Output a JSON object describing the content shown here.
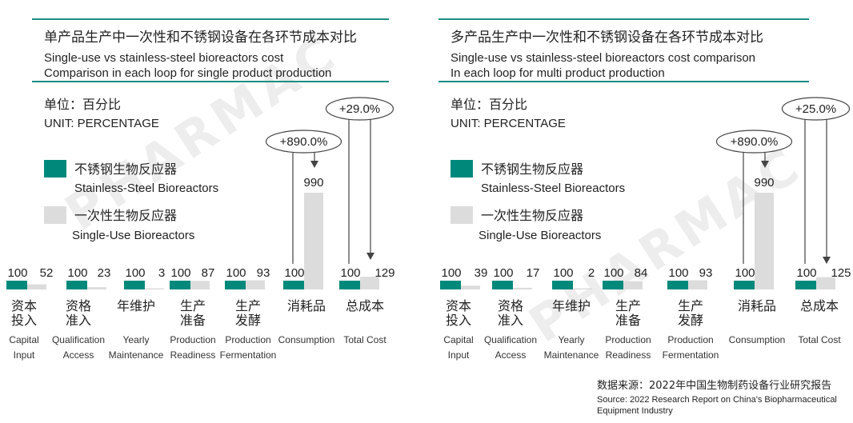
{
  "charts": [
    {
      "title_cn": "单产品生产中一次性和不锈钢设备在各环节成本对比",
      "title_en_1": "Single-use vs stainless-steel bioreactors cost",
      "title_en_2": "Comparison in each loop for single product production",
      "unit_cn": "单位：百分比",
      "unit_en": "UNIT: PERCENTAGE",
      "callouts": [
        {
          "label": "+890.0%",
          "category_index": 5
        },
        {
          "label": "+29.0%",
          "category_index": 6
        }
      ]
    },
    {
      "title_cn": "多产品生产中一次性和不锈钢设备在各环节成本对比",
      "title_en_1": "Single-use vs stainless-steel bioreactors cost comparison",
      "title_en_2": "In each loop for multi product production",
      "unit_cn": "单位：百分比",
      "unit_en": "UNIT: PERCENTAGE",
      "callouts": [
        {
          "label": "+890.0%",
          "category_index": 5
        },
        {
          "label": "+25.0%",
          "category_index": 6
        }
      ]
    }
  ],
  "legend": [
    {
      "cn": "不锈钢生物反应器",
      "en": "Stainless-Steel Bioreactors",
      "color": "#00897b"
    },
    {
      "cn": "一次性生物反应器",
      "en": "Single-Use Bioreactors",
      "color": "#dcdcdc"
    }
  ],
  "categories": [
    {
      "cn1": "资本",
      "cn2": "投入",
      "en1": "Capital",
      "en2": "Input"
    },
    {
      "cn1": "资格",
      "cn2": "准入",
      "en1": "Qualification",
      "en2": "Access"
    },
    {
      "cn1": "年维护",
      "cn2": "",
      "en1": "Yearly",
      "en2": "Maintenance"
    },
    {
      "cn1": "生产",
      "cn2": "准备",
      "en1": "Production",
      "en2": "Readiness"
    },
    {
      "cn1": "生产",
      "cn2": "发酵",
      "en1": "Production",
      "en2": "Fermentation"
    },
    {
      "cn1": "消耗品",
      "cn2": "",
      "en1": "Consumption",
      "en2": ""
    },
    {
      "cn1": "总成本",
      "cn2": "",
      "en1": "Total Cost",
      "en2": ""
    }
  ],
  "source_cn": "数据来源：2022年中国生物制药设备行业研究报告",
  "source_en_1": "Source: 2022 Research Report on China's Biopharmaceutical",
  "source_en_2": "Equipment Industry",
  "watermark": "PHARMAC",
  "colors": {
    "teal": "#00897b",
    "gray": "#dcdcdc",
    "rule": "#1a8f80"
  },
  "chart_data": [
    {
      "type": "bar",
      "categories": [
        "Capital Input",
        "Qualification Access",
        "Yearly Maintenance",
        "Production Readiness",
        "Production Fermentation",
        "Consumption",
        "Total Cost"
      ],
      "series": [
        {
          "name": "Stainless-Steel Bioreactors",
          "values": [
            100,
            100,
            100,
            100,
            100,
            100,
            100
          ]
        },
        {
          "name": "Single-Use Bioreactors",
          "values": [
            52,
            23,
            3,
            87,
            93,
            990,
            129
          ]
        }
      ],
      "ylim": [
        0,
        990
      ]
    },
    {
      "type": "bar",
      "categories": [
        "Capital Input",
        "Qualification Access",
        "Yearly Maintenance",
        "Production Readiness",
        "Production Fermentation",
        "Consumption",
        "Total Cost"
      ],
      "series": [
        {
          "name": "Stainless-Steel Bioreactors",
          "values": [
            100,
            100,
            100,
            100,
            100,
            100,
            100
          ]
        },
        {
          "name": "Single-Use Bioreactors",
          "values": [
            39,
            17,
            2,
            84,
            93,
            990,
            125
          ]
        }
      ],
      "ylim": [
        0,
        990
      ]
    }
  ]
}
